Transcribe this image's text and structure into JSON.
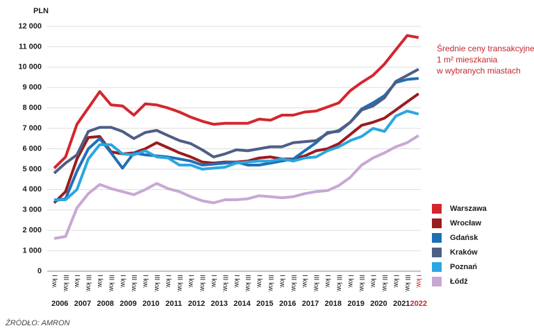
{
  "chart_data": {
    "type": "line",
    "y_label": "PLN",
    "title_lines": [
      "Średnie ceny transakcyjne",
      "1 m² mieszkania",
      "w wybranych miastach"
    ],
    "source": "ŹRÓDŁO: AMRON",
    "categories": [
      "I kw.",
      "III kw.",
      "I kw.",
      "III kw.",
      "I kw.",
      "III kw.",
      "I kw.",
      "III kw.",
      "I kw.",
      "III kw.",
      "I kw.",
      "III kw.",
      "I kw.",
      "III kw.",
      "I kw.",
      "III kw.",
      "I kw.",
      "III kw.",
      "I kw.",
      "III kw.",
      "I kw.",
      "III kw.",
      "I kw.",
      "III kw.",
      "I kw.",
      "III kw.",
      "I kw.",
      "III kw.",
      "I kw.",
      "III kw.",
      "I kw.",
      "III kw.",
      "I kw."
    ],
    "years": [
      "2006",
      "2007",
      "2008",
      "2009",
      "2010",
      "2011",
      "2012",
      "2013",
      "2014",
      "2015",
      "2016",
      "2017",
      "2018",
      "2019",
      "2020",
      "2021",
      "2022"
    ],
    "last_label_color": "#c0272d",
    "ylim": [
      0,
      12000
    ],
    "yticks": [
      0,
      {
        "value": 1000,
        "label": "1 000"
      },
      {
        "value": 2000,
        "label": "2 000"
      },
      {
        "value": 3000,
        "label": "3 000"
      },
      {
        "value": 4000,
        "label": "4 000"
      },
      {
        "value": 5000,
        "label": "5 000"
      },
      {
        "value": 6000,
        "label": "6 000"
      },
      {
        "value": 7000,
        "label": "7 000"
      },
      {
        "value": 8000,
        "label": "8 000"
      },
      {
        "value": 9000,
        "label": "9 000"
      },
      {
        "value": 10000,
        "label": "10 000"
      },
      {
        "value": 11000,
        "label": "11 000"
      },
      {
        "value": 12000,
        "label": "12 000"
      }
    ],
    "grid": true,
    "series": [
      {
        "name": "Warszawa",
        "color": "#d3262f",
        "values": [
          5050,
          5600,
          7200,
          8000,
          8800,
          8150,
          8100,
          7650,
          8200,
          8150,
          8000,
          7800,
          7550,
          7350,
          7200,
          7250,
          7250,
          7250,
          7450,
          7400,
          7650,
          7650,
          7800,
          7850,
          8050,
          8250,
          8850,
          9250,
          9600,
          10150,
          10850,
          11550,
          11450
        ]
      },
      {
        "name": "Wrocław",
        "color": "#9b1b1e",
        "values": [
          3350,
          3900,
          5500,
          6550,
          6600,
          5850,
          5750,
          5800,
          6000,
          6300,
          6050,
          5800,
          5600,
          5350,
          5300,
          5350,
          5350,
          5400,
          5550,
          5600,
          5500,
          5500,
          5650,
          5900,
          6000,
          6250,
          6700,
          7150,
          7300,
          7500,
          7900,
          8300,
          8700
        ]
      },
      {
        "name": "Gdańsk",
        "color": "#1f6fb5",
        "values": [
          3450,
          3550,
          4900,
          6000,
          6500,
          5800,
          5050,
          5800,
          5700,
          5650,
          5600,
          5500,
          5400,
          5200,
          5250,
          5300,
          5350,
          5200,
          5200,
          5300,
          5400,
          5500,
          5900,
          6300,
          6800,
          6850,
          7300,
          7950,
          8250,
          8600,
          9250,
          9400,
          9450
        ]
      },
      {
        "name": "Kraków",
        "color": "#4f5e86",
        "values": [
          4800,
          5300,
          5700,
          6850,
          7050,
          7050,
          6850,
          6500,
          6800,
          6900,
          6650,
          6400,
          6250,
          5950,
          5600,
          5750,
          5950,
          5900,
          6000,
          6100,
          6100,
          6300,
          6350,
          6400,
          6750,
          6900,
          7300,
          7900,
          8100,
          8500,
          9300,
          9600,
          9900
        ]
      },
      {
        "name": "Poznań",
        "color": "#2aa7e0",
        "values": [
          3500,
          3500,
          4000,
          5500,
          6200,
          6200,
          5750,
          5700,
          5900,
          5600,
          5550,
          5200,
          5200,
          5000,
          5050,
          5100,
          5300,
          5350,
          5400,
          5400,
          5500,
          5400,
          5550,
          5600,
          5900,
          6100,
          6400,
          6600,
          7000,
          6850,
          7600,
          7850,
          7700
        ]
      },
      {
        "name": "Łódź",
        "color": "#c7a8d3",
        "values": [
          1600,
          1700,
          3100,
          3800,
          4250,
          4050,
          3900,
          3750,
          4000,
          4300,
          4050,
          3900,
          3650,
          3450,
          3350,
          3500,
          3500,
          3550,
          3700,
          3650,
          3600,
          3650,
          3800,
          3900,
          3950,
          4200,
          4600,
          5200,
          5550,
          5800,
          6100,
          6300,
          6650
        ]
      }
    ]
  }
}
